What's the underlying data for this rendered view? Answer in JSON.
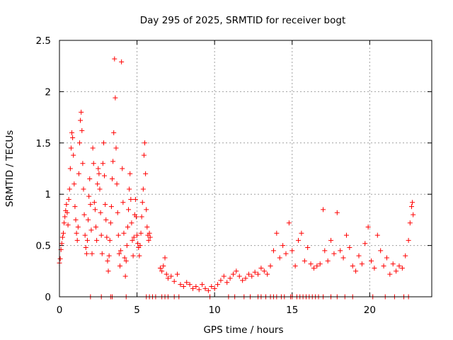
{
  "chart_data": {
    "type": "scatter",
    "title": "Day 295 of 2025, SRMTID for receiver bogt",
    "xlabel": "GPS time / hours",
    "ylabel": "SRMTID / TECUs",
    "xlim": [
      0,
      24
    ],
    "ylim": [
      0,
      2.5
    ],
    "x_ticks": [
      0,
      5,
      10,
      15,
      20
    ],
    "x_tick_labels": [
      "0",
      "5",
      "10",
      "15",
      "20"
    ],
    "y_ticks": [
      0,
      0.5,
      1,
      1.5,
      2,
      2.5
    ],
    "y_tick_labels": [
      "0",
      "0.5",
      "1",
      "1.5",
      "2",
      "2.5"
    ],
    "grid": true,
    "marker": "plus",
    "color": "#ff0000",
    "series": [
      {
        "name": "SRMTID",
        "points": [
          [
            0.0,
            0.33
          ],
          [
            0.05,
            0.37
          ],
          [
            0.1,
            0.46
          ],
          [
            0.15,
            0.52
          ],
          [
            0.2,
            0.58
          ],
          [
            0.25,
            0.62
          ],
          [
            0.3,
            0.72
          ],
          [
            0.35,
            0.78
          ],
          [
            0.4,
            0.84
          ],
          [
            0.45,
            0.9
          ],
          [
            0.5,
            0.82
          ],
          [
            0.55,
            0.7
          ],
          [
            0.6,
            0.95
          ],
          [
            0.65,
            1.05
          ],
          [
            0.7,
            1.25
          ],
          [
            0.75,
            1.45
          ],
          [
            0.8,
            1.6
          ],
          [
            0.85,
            1.55
          ],
          [
            0.9,
            1.38
          ],
          [
            0.95,
            1.1
          ],
          [
            1.0,
            0.88
          ],
          [
            1.05,
            0.75
          ],
          [
            1.1,
            0.62
          ],
          [
            1.15,
            0.55
          ],
          [
            1.2,
            0.68
          ],
          [
            1.25,
            1.2
          ],
          [
            1.3,
            1.5
          ],
          [
            1.35,
            1.72
          ],
          [
            1.4,
            1.8
          ],
          [
            1.45,
            1.62
          ],
          [
            1.5,
            1.3
          ],
          [
            1.55,
            1.05
          ],
          [
            1.6,
            0.8
          ],
          [
            1.65,
            0.6
          ],
          [
            1.7,
            0.48
          ],
          [
            1.75,
            0.42
          ],
          [
            1.8,
            0.55
          ],
          [
            1.85,
            0.75
          ],
          [
            1.9,
            0.98
          ],
          [
            1.95,
            1.15
          ],
          [
            2.0,
            0.9
          ],
          [
            2.05,
            0.65
          ],
          [
            2.1,
            0.42
          ],
          [
            2.15,
            1.45
          ],
          [
            2.2,
            1.3
          ],
          [
            2.25,
            0.92
          ],
          [
            2.3,
            0.85
          ],
          [
            2.35,
            0.68
          ],
          [
            2.4,
            0.55
          ],
          [
            2.45,
            1.1
          ],
          [
            2.5,
            1.25
          ],
          [
            2.55,
            1.2
          ],
          [
            2.6,
            1.05
          ],
          [
            2.65,
            0.82
          ],
          [
            2.7,
            0.6
          ],
          [
            2.75,
            0.42
          ],
          [
            2.8,
            1.3
          ],
          [
            2.85,
            1.5
          ],
          [
            2.9,
            1.18
          ],
          [
            2.95,
            0.9
          ],
          [
            3.0,
            0.75
          ],
          [
            3.05,
            0.58
          ],
          [
            3.1,
            0.35
          ],
          [
            3.15,
            0.25
          ],
          [
            3.2,
            0.4
          ],
          [
            3.25,
            0.55
          ],
          [
            3.3,
            0.72
          ],
          [
            3.35,
            0.88
          ],
          [
            3.4,
            1.15
          ],
          [
            3.45,
            1.32
          ],
          [
            3.5,
            1.6
          ],
          [
            3.55,
            2.32
          ],
          [
            3.6,
            1.94
          ],
          [
            3.65,
            1.45
          ],
          [
            3.7,
            1.1
          ],
          [
            3.75,
            0.82
          ],
          [
            3.8,
            0.6
          ],
          [
            3.85,
            0.42
          ],
          [
            3.9,
            0.3
          ],
          [
            3.95,
            0.45
          ],
          [
            4.0,
            2.29
          ],
          [
            4.05,
            1.25
          ],
          [
            4.1,
            0.92
          ],
          [
            4.15,
            0.62
          ],
          [
            4.2,
            0.38
          ],
          [
            4.25,
            0.2
          ],
          [
            4.3,
            0.35
          ],
          [
            4.35,
            0.5
          ],
          [
            4.4,
            0.68
          ],
          [
            4.45,
            0.85
          ],
          [
            4.5,
            1.05
          ],
          [
            4.55,
            1.2
          ],
          [
            4.6,
            0.95
          ],
          [
            4.65,
            0.72
          ],
          [
            4.7,
            0.55
          ],
          [
            4.75,
            0.4
          ],
          [
            4.8,
            0.58
          ],
          [
            4.85,
            0.8
          ],
          [
            4.9,
            0.95
          ],
          [
            4.95,
            0.78
          ],
          [
            5.0,
            0.6
          ],
          [
            5.05,
            0.52
          ],
          [
            5.1,
            0.48
          ],
          [
            5.15,
            0.4
          ],
          [
            5.2,
            0.5
          ],
          [
            5.25,
            0.62
          ],
          [
            5.3,
            0.78
          ],
          [
            5.35,
            0.92
          ],
          [
            5.4,
            1.05
          ],
          [
            5.45,
            1.38
          ],
          [
            5.5,
            1.5
          ],
          [
            5.55,
            1.2
          ],
          [
            5.6,
            0.85
          ],
          [
            5.65,
            0.68
          ],
          [
            5.7,
            0.6
          ],
          [
            5.75,
            0.55
          ],
          [
            5.8,
            0.62
          ],
          [
            5.85,
            0.58
          ],
          [
            6.5,
            0.28
          ],
          [
            6.6,
            0.25
          ],
          [
            6.7,
            0.3
          ],
          [
            6.8,
            0.38
          ],
          [
            6.9,
            0.22
          ],
          [
            7.0,
            0.18
          ],
          [
            7.2,
            0.2
          ],
          [
            7.4,
            0.15
          ],
          [
            7.6,
            0.22
          ],
          [
            7.8,
            0.12
          ],
          [
            8.0,
            0.1
          ],
          [
            8.2,
            0.14
          ],
          [
            8.4,
            0.12
          ],
          [
            8.6,
            0.08
          ],
          [
            8.8,
            0.1
          ],
          [
            9.0,
            0.07
          ],
          [
            9.2,
            0.12
          ],
          [
            9.4,
            0.08
          ],
          [
            9.6,
            0.06
          ],
          [
            9.8,
            0.1
          ],
          [
            10.0,
            0.08
          ],
          [
            10.2,
            0.12
          ],
          [
            10.4,
            0.16
          ],
          [
            10.6,
            0.2
          ],
          [
            10.8,
            0.14
          ],
          [
            11.0,
            0.18
          ],
          [
            11.2,
            0.22
          ],
          [
            11.4,
            0.25
          ],
          [
            11.6,
            0.2
          ],
          [
            11.8,
            0.16
          ],
          [
            12.0,
            0.18
          ],
          [
            12.2,
            0.22
          ],
          [
            12.4,
            0.2
          ],
          [
            12.6,
            0.24
          ],
          [
            12.8,
            0.22
          ],
          [
            13.0,
            0.28
          ],
          [
            13.2,
            0.25
          ],
          [
            13.4,
            0.22
          ],
          [
            13.6,
            0.3
          ],
          [
            13.8,
            0.45
          ],
          [
            14.0,
            0.62
          ],
          [
            14.2,
            0.38
          ],
          [
            14.4,
            0.5
          ],
          [
            14.6,
            0.42
          ],
          [
            14.8,
            0.72
          ],
          [
            15.0,
            0.45
          ],
          [
            15.2,
            0.3
          ],
          [
            15.4,
            0.55
          ],
          [
            15.6,
            0.62
          ],
          [
            15.8,
            0.35
          ],
          [
            16.0,
            0.48
          ],
          [
            16.2,
            0.32
          ],
          [
            16.4,
            0.28
          ],
          [
            16.6,
            0.3
          ],
          [
            16.8,
            0.32
          ],
          [
            17.0,
            0.85
          ],
          [
            17.1,
            0.45
          ],
          [
            17.3,
            0.35
          ],
          [
            17.5,
            0.55
          ],
          [
            17.7,
            0.42
          ],
          [
            17.9,
            0.82
          ],
          [
            18.1,
            0.45
          ],
          [
            18.3,
            0.38
          ],
          [
            18.5,
            0.6
          ],
          [
            18.7,
            0.48
          ],
          [
            18.9,
            0.3
          ],
          [
            19.1,
            0.25
          ],
          [
            19.3,
            0.4
          ],
          [
            19.5,
            0.32
          ],
          [
            19.7,
            0.52
          ],
          [
            19.9,
            0.68
          ],
          [
            20.1,
            0.35
          ],
          [
            20.3,
            0.28
          ],
          [
            20.5,
            0.6
          ],
          [
            20.7,
            0.45
          ],
          [
            20.9,
            0.3
          ],
          [
            21.1,
            0.38
          ],
          [
            21.3,
            0.22
          ],
          [
            21.5,
            0.32
          ],
          [
            21.7,
            0.25
          ],
          [
            21.9,
            0.3
          ],
          [
            22.1,
            0.28
          ],
          [
            22.3,
            0.4
          ],
          [
            22.5,
            0.55
          ],
          [
            22.6,
            0.72
          ],
          [
            22.7,
            0.88
          ],
          [
            22.75,
            0.92
          ],
          [
            22.8,
            0.8
          ]
        ]
      },
      {
        "name": "zero-values",
        "points": [
          [
            2.0,
            0
          ],
          [
            2.7,
            0
          ],
          [
            3.3,
            0
          ],
          [
            3.4,
            0
          ],
          [
            4.3,
            0
          ],
          [
            5.6,
            0
          ],
          [
            5.8,
            0
          ],
          [
            6.0,
            0
          ],
          [
            6.2,
            0
          ],
          [
            6.6,
            0
          ],
          [
            6.8,
            0
          ],
          [
            7.0,
            0
          ],
          [
            7.4,
            0
          ],
          [
            7.7,
            0
          ],
          [
            9.7,
            0
          ],
          [
            10.9,
            0
          ],
          [
            11.3,
            0
          ],
          [
            11.9,
            0
          ],
          [
            12.3,
            0
          ],
          [
            12.8,
            0
          ],
          [
            13.0,
            0
          ],
          [
            13.3,
            0
          ],
          [
            13.6,
            0
          ],
          [
            13.8,
            0
          ],
          [
            14.0,
            0
          ],
          [
            14.3,
            0
          ],
          [
            14.5,
            0
          ],
          [
            14.9,
            0
          ],
          [
            15.0,
            0
          ],
          [
            15.3,
            0
          ],
          [
            15.5,
            0
          ],
          [
            15.7,
            0
          ],
          [
            15.9,
            0
          ],
          [
            16.1,
            0
          ],
          [
            16.3,
            0
          ],
          [
            16.5,
            0
          ],
          [
            16.7,
            0
          ],
          [
            17.0,
            0
          ],
          [
            17.5,
            0
          ],
          [
            17.9,
            0
          ],
          [
            18.4,
            0
          ],
          [
            18.9,
            0
          ],
          [
            20.2,
            0
          ],
          [
            21.0,
            0
          ],
          [
            21.6,
            0
          ],
          [
            22.2,
            0
          ],
          [
            22.5,
            0
          ]
        ]
      }
    ]
  }
}
